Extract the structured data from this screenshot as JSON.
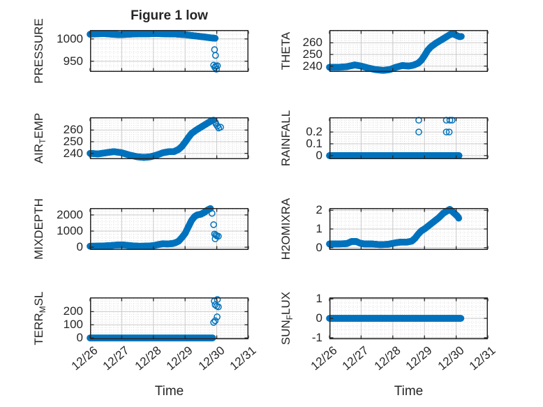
{
  "figure": {
    "title": "Figure 1 low",
    "xlabel": "Time",
    "x_tick_labels": [
      "12/26",
      "12/27",
      "12/28",
      "12/29",
      "12/30",
      "12/31"
    ],
    "marker_style": "open-circle",
    "colors": {
      "marker": "#0072BD",
      "axis": "#262626",
      "text": "#262626",
      "grid_major": "#c9c9c9",
      "grid_minor": "#dcdcdc",
      "background": "#ffffff"
    }
  },
  "chart_data": [
    {
      "id": "pressure",
      "type": "scatter",
      "ylabel": "PRESSURE",
      "ylabel_parts": [
        {
          "text": "PRESSURE"
        }
      ],
      "x_range": [
        0,
        5
      ],
      "y_range": [
        926,
        1020
      ],
      "y_ticks": {
        "values": [
          950,
          1000
        ],
        "labels": [
          "950",
          "1000"
        ]
      },
      "y_minor_step": 10,
      "series": {
        "step": 0.02,
        "keypoints": [
          [
            0,
            1010.5
          ],
          [
            0.2,
            1011.5
          ],
          [
            0.45,
            1012
          ],
          [
            0.7,
            1010.5
          ],
          [
            0.95,
            1009.5
          ],
          [
            1.2,
            1010.5
          ],
          [
            1.5,
            1011.5
          ],
          [
            1.8,
            1011.5
          ],
          [
            2.05,
            1012
          ],
          [
            2.35,
            1011.5
          ],
          [
            2.7,
            1011
          ],
          [
            3.0,
            1009.5
          ],
          [
            3.3,
            1007
          ],
          [
            3.6,
            1004.5
          ],
          [
            3.8,
            1002.5
          ],
          [
            3.95,
            1001.5
          ]
        ]
      },
      "outliers": [
        [
          3.93,
          976
        ],
        [
          3.96,
          963
        ],
        [
          3.9,
          941
        ],
        [
          3.94,
          936
        ],
        [
          3.97,
          939
        ],
        [
          3.99,
          932
        ],
        [
          4.02,
          940
        ]
      ]
    },
    {
      "id": "theta",
      "type": "scatter",
      "ylabel": "THETA",
      "ylabel_parts": [
        {
          "text": "THETA"
        }
      ],
      "x_range": [
        0,
        5
      ],
      "y_range": [
        235,
        271
      ],
      "y_ticks": {
        "values": [
          240,
          250,
          260
        ],
        "labels": [
          "240",
          "250",
          "260"
        ]
      },
      "y_minor_step": 2,
      "series": {
        "step": 0.02,
        "keypoints": [
          [
            0,
            239
          ],
          [
            0.3,
            239
          ],
          [
            0.55,
            239.5
          ],
          [
            0.8,
            241
          ],
          [
            1.0,
            240
          ],
          [
            1.2,
            238.5
          ],
          [
            1.45,
            237
          ],
          [
            1.7,
            236.3
          ],
          [
            1.9,
            237
          ],
          [
            2.1,
            239
          ],
          [
            2.3,
            240.5
          ],
          [
            2.5,
            240
          ],
          [
            2.65,
            240.8
          ],
          [
            2.8,
            242.5
          ],
          [
            2.9,
            245
          ],
          [
            3.0,
            249
          ],
          [
            3.1,
            253.5
          ],
          [
            3.2,
            256.5
          ],
          [
            3.35,
            259.5
          ],
          [
            3.5,
            262
          ],
          [
            3.65,
            264.5
          ],
          [
            3.8,
            267
          ],
          [
            3.9,
            267.8
          ],
          [
            4.0,
            266.5
          ],
          [
            4.1,
            265.3
          ],
          [
            4.16,
            265.5
          ]
        ]
      },
      "outliers": []
    },
    {
      "id": "air-temp",
      "type": "scatter",
      "ylabel": "AIR_TEMP",
      "ylabel_parts": [
        {
          "text": "AIR"
        },
        {
          "text": "T",
          "sub": true
        },
        {
          "text": "EMP"
        }
      ],
      "x_range": [
        0,
        5
      ],
      "y_range": [
        235,
        271
      ],
      "y_ticks": {
        "values": [
          240,
          250,
          260
        ],
        "labels": [
          "240",
          "250",
          "260"
        ]
      },
      "y_minor_step": 2,
      "series": {
        "step": 0.02,
        "keypoints": [
          [
            0,
            240
          ],
          [
            0.25,
            239.5
          ],
          [
            0.5,
            240.5
          ],
          [
            0.75,
            241.5
          ],
          [
            1.0,
            240.5
          ],
          [
            1.25,
            238.5
          ],
          [
            1.5,
            237
          ],
          [
            1.7,
            236.5
          ],
          [
            1.9,
            237
          ],
          [
            2.1,
            238.5
          ],
          [
            2.3,
            240.5
          ],
          [
            2.5,
            241.5
          ],
          [
            2.65,
            241.5
          ],
          [
            2.8,
            243.5
          ],
          [
            2.9,
            246
          ],
          [
            3.0,
            249.5
          ],
          [
            3.1,
            253.5
          ],
          [
            3.2,
            257
          ],
          [
            3.35,
            260
          ],
          [
            3.5,
            262.5
          ],
          [
            3.65,
            265
          ],
          [
            3.8,
            267.5
          ],
          [
            3.9,
            268.5
          ]
        ]
      },
      "outliers": [
        [
          3.96,
          266.5
        ],
        [
          3.98,
          265
        ],
        [
          4.02,
          263.5
        ],
        [
          4.06,
          261.8
        ],
        [
          4.12,
          262.5
        ]
      ]
    },
    {
      "id": "rainfall",
      "type": "scatter",
      "ylabel": "RAINFALL",
      "ylabel_parts": [
        {
          "text": "RAINFALL"
        }
      ],
      "x_range": [
        0,
        5
      ],
      "y_range": [
        -0.03,
        0.325
      ],
      "y_ticks": {
        "values": [
          0,
          0.1,
          0.2
        ],
        "labels": [
          "0",
          "0.1",
          "0.2"
        ]
      },
      "y_minor_step": 0.02,
      "series": {
        "step": 0.02,
        "keypoints": [
          [
            0,
            0
          ],
          [
            4.09,
            0
          ]
        ]
      },
      "outliers": [
        [
          2.82,
          0.3
        ],
        [
          2.82,
          0.2
        ],
        [
          3.69,
          0.3
        ],
        [
          3.8,
          0.3
        ],
        [
          3.87,
          0.3
        ],
        [
          3.69,
          0.2
        ],
        [
          3.78,
          0.2
        ]
      ]
    },
    {
      "id": "mixdepth",
      "type": "scatter",
      "ylabel": "MIXDEPTH",
      "ylabel_parts": [
        {
          "text": "MIXDEPTH"
        }
      ],
      "x_range": [
        0,
        5
      ],
      "y_range": [
        -170,
        2430
      ],
      "y_ticks": {
        "values": [
          0,
          1000,
          2000
        ],
        "labels": [
          "0",
          "1000",
          "2000"
        ]
      },
      "y_minor_step": 200,
      "series": {
        "step": 0.02,
        "keypoints": [
          [
            0,
            60
          ],
          [
            0.3,
            70
          ],
          [
            0.6,
            95
          ],
          [
            0.85,
            135
          ],
          [
            1.05,
            140
          ],
          [
            1.3,
            90
          ],
          [
            1.55,
            60
          ],
          [
            1.8,
            70
          ],
          [
            2.0,
            95
          ],
          [
            2.15,
            160
          ],
          [
            2.3,
            215
          ],
          [
            2.45,
            200
          ],
          [
            2.6,
            230
          ],
          [
            2.7,
            280
          ],
          [
            2.8,
            380
          ],
          [
            2.9,
            600
          ],
          [
            3.0,
            850
          ],
          [
            3.1,
            1250
          ],
          [
            3.2,
            1650
          ],
          [
            3.3,
            1900
          ],
          [
            3.38,
            2000
          ],
          [
            3.5,
            2050
          ],
          [
            3.6,
            2150
          ],
          [
            3.7,
            2300
          ],
          [
            3.8,
            2400
          ]
        ]
      },
      "outliers": [
        [
          3.85,
          2100
        ],
        [
          3.9,
          1400
        ],
        [
          3.93,
          820
        ],
        [
          3.97,
          760
        ],
        [
          3.95,
          520
        ],
        [
          4.0,
          700
        ],
        [
          4.05,
          680
        ]
      ]
    },
    {
      "id": "h2omixra",
      "type": "scatter",
      "ylabel": "H2OMIXRA",
      "ylabel_parts": [
        {
          "text": "H2OMIXRA"
        }
      ],
      "x_range": [
        0,
        5
      ],
      "y_range": [
        -0.12,
        2.12
      ],
      "y_ticks": {
        "values": [
          0,
          1,
          2
        ],
        "labels": [
          "0",
          "1",
          "2"
        ]
      },
      "y_minor_step": 0.2,
      "series": {
        "step": 0.02,
        "keypoints": [
          [
            0,
            0.2
          ],
          [
            0.3,
            0.2
          ],
          [
            0.55,
            0.22
          ],
          [
            0.7,
            0.33
          ],
          [
            0.85,
            0.33
          ],
          [
            0.95,
            0.25
          ],
          [
            1.1,
            0.2
          ],
          [
            1.35,
            0.2
          ],
          [
            1.6,
            0.16
          ],
          [
            1.85,
            0.18
          ],
          [
            2.05,
            0.25
          ],
          [
            2.25,
            0.3
          ],
          [
            2.45,
            0.3
          ],
          [
            2.6,
            0.35
          ],
          [
            2.7,
            0.5
          ],
          [
            2.8,
            0.72
          ],
          [
            2.9,
            0.9
          ],
          [
            3.0,
            1.0
          ],
          [
            3.15,
            1.2
          ],
          [
            3.3,
            1.4
          ],
          [
            3.45,
            1.6
          ],
          [
            3.6,
            1.85
          ],
          [
            3.7,
            1.95
          ],
          [
            3.8,
            2.05
          ],
          [
            3.9,
            1.9
          ],
          [
            4.0,
            1.75
          ],
          [
            4.07,
            1.62
          ]
        ]
      },
      "outliers": [
        [
          4.02,
          1.72
        ],
        [
          4.08,
          1.58
        ]
      ]
    },
    {
      "id": "terr-msl",
      "type": "scatter",
      "ylabel": "TERR_MSL",
      "ylabel_parts": [
        {
          "text": "TERR"
        },
        {
          "text": "M",
          "sub": true
        },
        {
          "text": "SL"
        }
      ],
      "x_range": [
        0,
        5
      ],
      "y_range": [
        -10,
        308
      ],
      "y_ticks": {
        "values": [
          0,
          100,
          200
        ],
        "labels": [
          "0",
          "100",
          "200"
        ]
      },
      "y_minor_step": 20,
      "series": {
        "step": 0.02,
        "keypoints": [
          [
            0,
            0
          ],
          [
            3.87,
            0
          ]
        ]
      },
      "outliers": [
        [
          3.92,
          280
        ],
        [
          4.02,
          292
        ],
        [
          3.95,
          252
        ],
        [
          4.0,
          242
        ],
        [
          4.05,
          236
        ],
        [
          3.9,
          118
        ],
        [
          3.95,
          131
        ],
        [
          4.01,
          160
        ]
      ]
    },
    {
      "id": "sun-flux",
      "type": "scatter",
      "ylabel": "SUN_FLUX",
      "ylabel_parts": [
        {
          "text": "SUN"
        },
        {
          "text": "F",
          "sub": true
        },
        {
          "text": "LUX"
        }
      ],
      "x_range": [
        0,
        5
      ],
      "y_range": [
        -1.08,
        1.08
      ],
      "y_ticks": {
        "values": [
          -1,
          0,
          1
        ],
        "labels": [
          "-1",
          "0",
          "1"
        ]
      },
      "y_minor_step": 0.2,
      "series": {
        "step": 0.02,
        "keypoints": [
          [
            0,
            0
          ],
          [
            4.15,
            0
          ]
        ]
      },
      "outliers": []
    }
  ]
}
